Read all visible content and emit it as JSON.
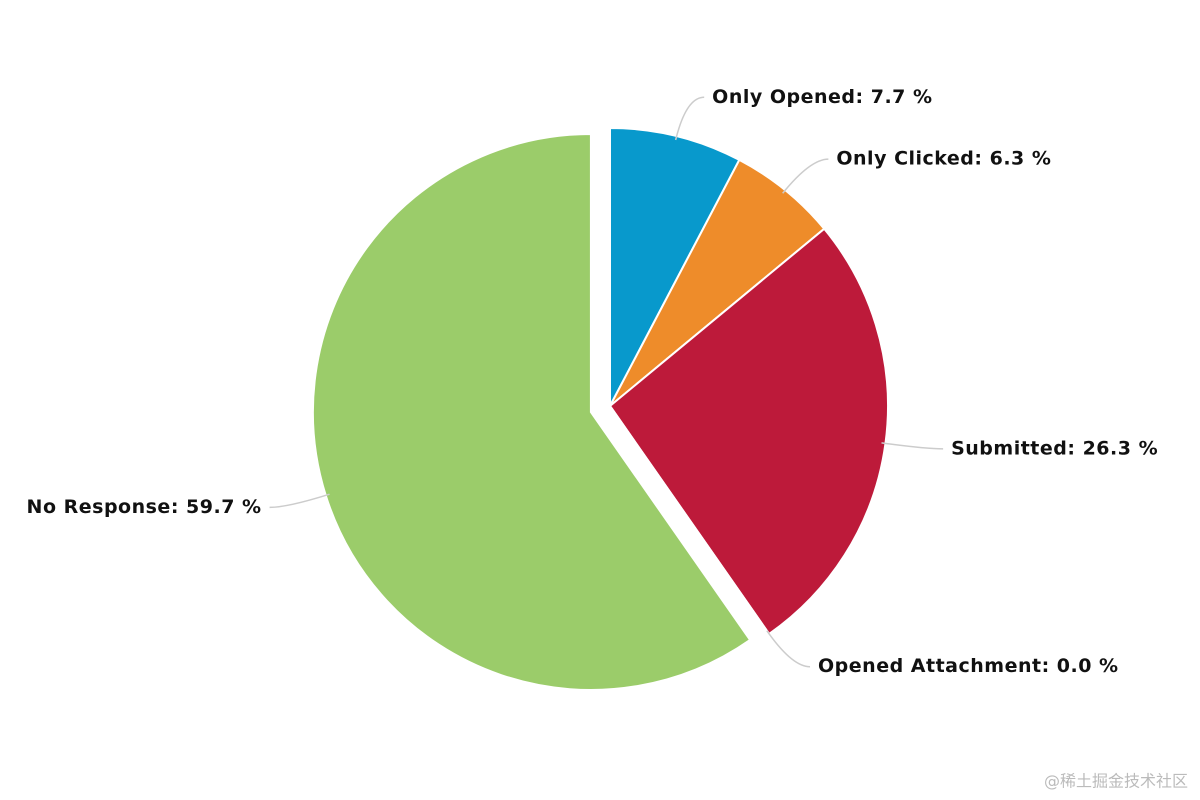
{
  "chart_data": {
    "type": "pie",
    "labels": [
      "Only Opened: 7.7 %",
      "Only Clicked: 6.3 %",
      "Submitted: 26.3 %",
      "Opened Attachment: 0.0 %",
      "No Response: 59.7 %"
    ],
    "values": [
      7.7,
      6.3,
      26.3,
      0.0,
      59.7
    ],
    "colors": [
      "#0899cc",
      "#ee8c2a",
      "#bd1a3a",
      "#6b3fa0",
      "#9bcc6a"
    ],
    "exploded": [
      false,
      false,
      false,
      false,
      true
    ],
    "watermark": "@稀土掘金技术社区"
  }
}
